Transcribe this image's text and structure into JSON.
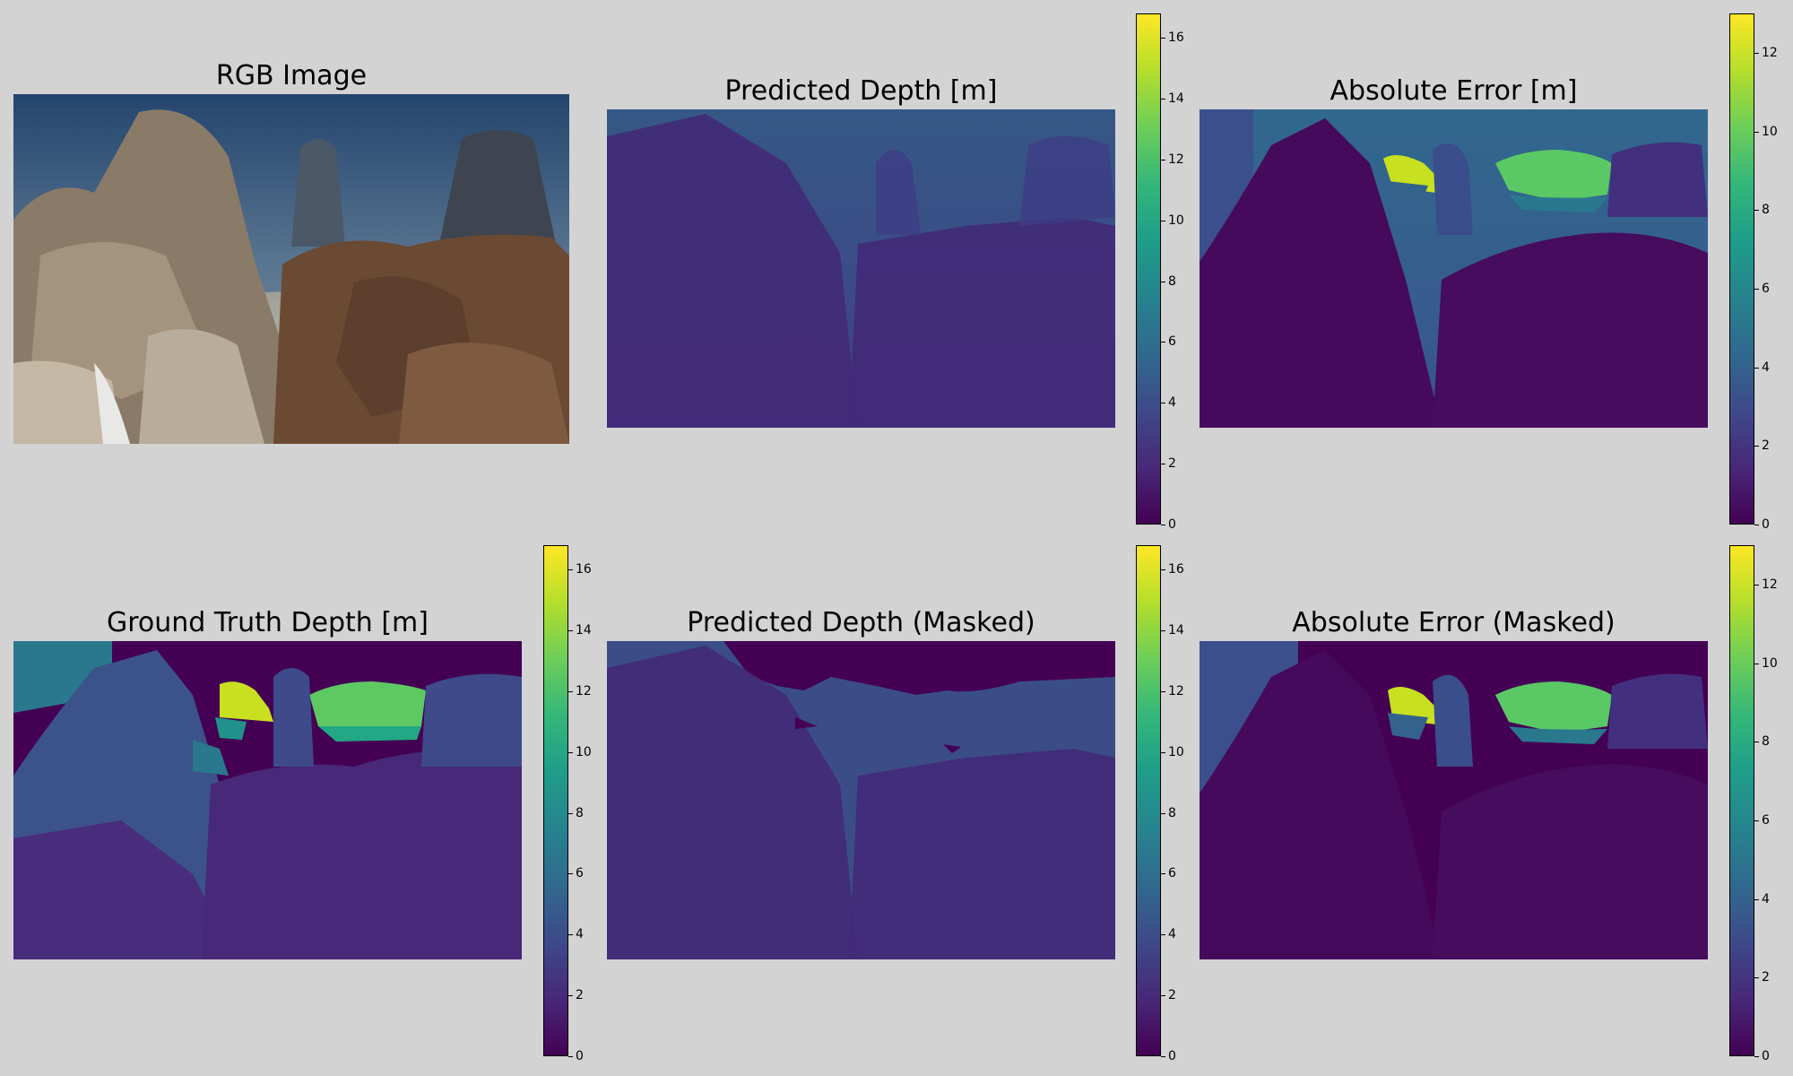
{
  "panels": {
    "rgb": {
      "title": "RGB Image"
    },
    "pred": {
      "title": "Predicted Depth [m]"
    },
    "err": {
      "title": "Absolute Error [m]"
    },
    "gt": {
      "title": "Ground Truth Depth [m]"
    },
    "pred_masked": {
      "title": "Predicted Depth (Masked)"
    },
    "err_masked": {
      "title": "Absolute Error (Masked)"
    }
  },
  "colorbars": {
    "depth": {
      "ticks": [
        "0",
        "2",
        "4",
        "6",
        "8",
        "10",
        "12",
        "14",
        "16"
      ],
      "max": 16.8
    },
    "error": {
      "ticks": [
        "0",
        "2",
        "4",
        "6",
        "8",
        "10",
        "12"
      ],
      "max": 13.0
    }
  },
  "colors": {
    "background": "#d3d3d3",
    "viridis_low": "#440154",
    "viridis_high": "#fde725"
  }
}
